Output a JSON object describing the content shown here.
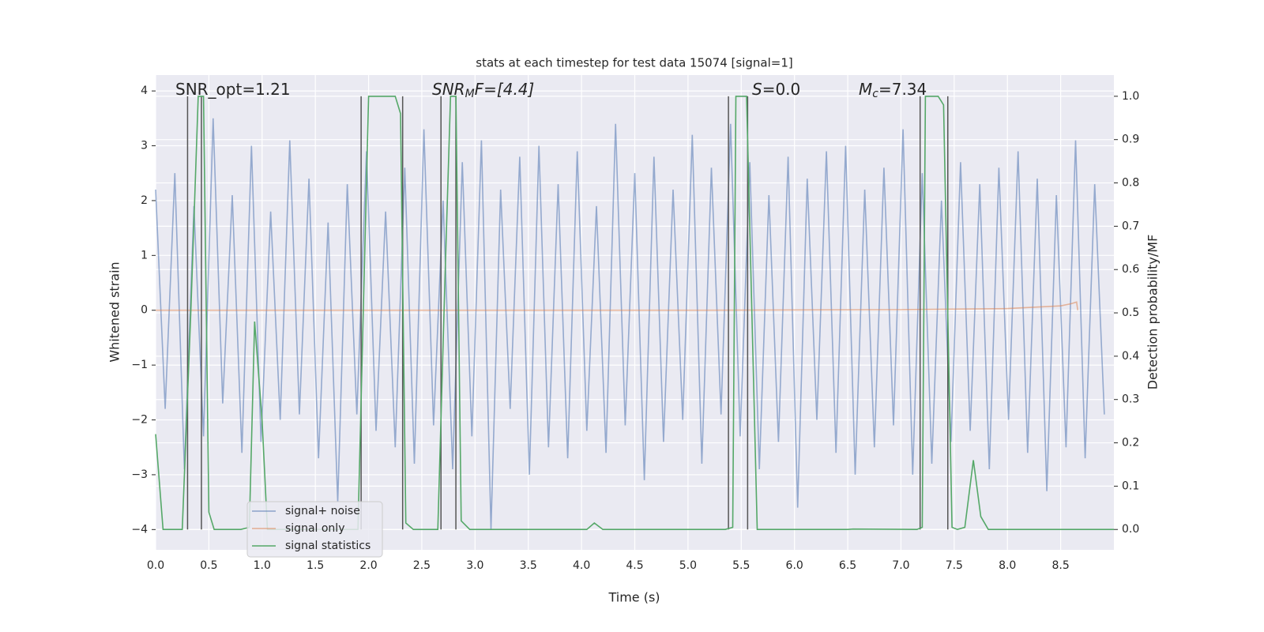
{
  "chart_data": {
    "type": "line",
    "title": "stats at each timestep for test data 15074 [signal=1]",
    "x_label": "Time (s)",
    "y_label": "Whitened strain",
    "y2_label": "Detection probability/MF",
    "xlim": [
      0,
      9.0
    ],
    "ylim": [
      -4.37,
      4.29
    ],
    "y2lim": [
      -0.047,
      1.049
    ],
    "xticks": [
      {
        "value": 0,
        "label": "0.0"
      },
      0.5,
      {
        "value": 1,
        "label": "1.0"
      },
      1.5,
      {
        "value": 2,
        "label": "2.0"
      },
      2.5,
      {
        "value": 3,
        "label": "3.0"
      },
      3.5,
      {
        "value": 4,
        "label": "4.0"
      },
      4.5,
      {
        "value": 5,
        "label": "5.0"
      },
      5.5,
      {
        "value": 6,
        "label": "6.0"
      },
      6.5,
      {
        "value": 7,
        "label": "7.0"
      },
      7.5,
      {
        "value": 8,
        "label": "8.0"
      },
      8.5
    ],
    "yticks": [
      {
        "value": -4,
        "label": "−4"
      },
      {
        "value": -3,
        "label": "−3"
      },
      {
        "value": -2,
        "label": "−2"
      },
      {
        "value": -1,
        "label": "−1"
      },
      0,
      1,
      2,
      3,
      4
    ],
    "y2ticks": [
      {
        "value": 0,
        "label": "0.0"
      },
      0.1,
      0.2,
      0.3,
      0.4,
      0.5,
      0.6,
      0.7,
      0.8,
      0.9,
      {
        "value": 1,
        "label": "1.0"
      }
    ],
    "grid": true,
    "legend": "lower left",
    "series": [
      {
        "name": "signal+ noise",
        "color": "#4c72b0",
        "x": [
          0,
          0.09,
          0.18,
          0.27,
          0.36,
          0.45,
          0.54,
          0.63,
          0.72,
          0.81,
          0.9,
          0.99,
          1.08,
          1.17,
          1.26,
          1.35,
          1.44,
          1.53,
          1.62,
          1.71,
          1.8,
          1.89,
          1.98,
          2.07,
          2.16,
          2.25,
          2.34,
          2.43,
          2.52,
          2.61,
          2.7,
          2.79,
          2.88,
          2.97,
          3.06,
          3.15,
          3.24,
          3.33,
          3.42,
          3.51,
          3.6,
          3.69,
          3.78,
          3.87,
          3.96,
          4.05,
          4.14,
          4.23,
          4.32,
          4.41,
          4.5,
          4.59,
          4.68,
          4.77,
          4.86,
          4.95,
          5.04,
          5.13,
          5.22,
          5.31,
          5.4,
          5.49,
          5.58,
          5.67,
          5.76,
          5.85,
          5.94,
          6.03,
          6.12,
          6.21,
          6.3,
          6.39,
          6.48,
          6.57,
          6.66,
          6.75,
          6.84,
          6.93,
          7.02,
          7.11,
          7.2,
          7.29,
          7.38,
          7.47,
          7.56,
          7.65,
          7.74,
          7.83,
          7.92,
          8.01,
          8.1,
          8.19,
          8.28,
          8.37,
          8.46,
          8.55,
          8.64,
          8.73,
          8.82,
          8.91
        ],
        "values": [
          2.2,
          -1.8,
          2.5,
          -2.9,
          1.9,
          -2.3,
          3.5,
          -1.7,
          2.1,
          -2.6,
          3.0,
          -2.4,
          1.8,
          -2.0,
          3.1,
          -1.9,
          2.4,
          -2.7,
          1.6,
          -3.5,
          2.3,
          -1.9,
          2.9,
          -2.2,
          1.8,
          -2.5,
          2.6,
          -2.8,
          3.3,
          -2.1,
          2.0,
          -2.9,
          2.7,
          -2.3,
          3.1,
          -4.0,
          2.2,
          -1.8,
          2.8,
          -3.0,
          3.0,
          -2.5,
          2.3,
          -2.7,
          2.9,
          -2.2,
          1.9,
          -2.6,
          3.4,
          -2.1,
          2.5,
          -3.1,
          2.8,
          -2.4,
          2.2,
          -2.0,
          3.2,
          -2.8,
          2.6,
          -1.9,
          3.4,
          -2.3,
          2.7,
          -2.9,
          2.1,
          -2.4,
          2.8,
          -3.6,
          2.4,
          -2.0,
          2.9,
          -2.6,
          3.0,
          -3.0,
          2.2,
          -2.5,
          2.6,
          -2.1,
          3.3,
          -3.0,
          2.5,
          -2.8,
          2.0,
          -2.4,
          2.7,
          -2.2,
          2.3,
          -2.9,
          2.6,
          -2.0,
          2.9,
          -2.6,
          2.4,
          -3.3,
          2.1,
          -2.5,
          3.1,
          -2.7,
          2.3,
          -1.9
        ]
      },
      {
        "name": "signal only",
        "color": "#dd8452",
        "x": [
          0,
          5,
          7,
          8,
          8.5,
          8.6,
          8.65,
          8.66
        ],
        "values": [
          0,
          0,
          0.01,
          0.03,
          0.08,
          0.12,
          0.15,
          0
        ]
      },
      {
        "name": "signal statistics",
        "color": "#55a868",
        "axis": "y2",
        "x": [
          0,
          0.07,
          0.25,
          0.33,
          0.4,
          0.45,
          0.5,
          0.55,
          0.8,
          0.88,
          0.93,
          1.0,
          1.05,
          1.9,
          1.95,
          2.0,
          2.25,
          2.3,
          2.35,
          2.42,
          2.65,
          2.72,
          2.77,
          2.82,
          2.87,
          2.95,
          4.05,
          4.12,
          4.2,
          5.35,
          5.42,
          5.45,
          5.55,
          5.65,
          6.5,
          6.55,
          7.15,
          7.2,
          7.23,
          7.35,
          7.4,
          7.48,
          7.53,
          7.6,
          7.68,
          7.75,
          7.82,
          9.0
        ],
        "values": [
          0.22,
          0,
          0,
          0.5,
          1.0,
          1.0,
          0.04,
          0,
          0,
          0.005,
          0.48,
          0.25,
          0,
          0,
          0.5,
          1.0,
          1.0,
          0.96,
          0.015,
          0,
          0,
          0.6,
          1.0,
          1.0,
          0.02,
          0,
          0,
          0.015,
          0,
          0,
          0.005,
          1.0,
          1.0,
          0,
          0,
          0.001,
          0,
          0.005,
          1.0,
          1.0,
          0.98,
          0.005,
          0,
          0.005,
          0.16,
          0.03,
          0,
          0
        ]
      }
    ],
    "vlines": {
      "color": "#555555",
      "x": [
        0.3,
        0.43,
        1.93,
        2.32,
        2.68,
        2.82,
        5.38,
        5.56,
        7.18,
        7.44
      ]
    },
    "annotations": [
      {
        "base": "SNR_opt=1.21"
      },
      {
        "base": "SNR",
        "sub": "M",
        "rest": "F=[4.4]"
      },
      {
        "base": "S",
        "rest": "=0.0"
      },
      {
        "base": "M",
        "sub": "c",
        "rest": "=7.34"
      }
    ]
  }
}
